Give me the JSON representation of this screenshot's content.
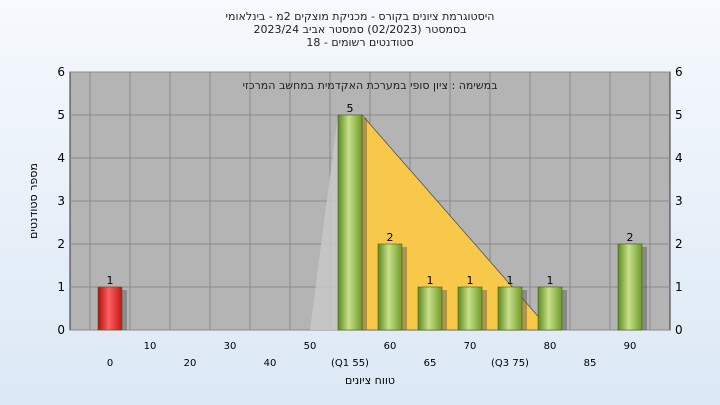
{
  "header": {
    "line1": "היסטוגרמת ציונים בקורס - מכניקת מוצקים 2מ - בינלאומי",
    "line2": "בסמסטר  (02/2023)  סמסטר אביב 2023/24",
    "line3": "סטודנטים רשומים - 18"
  },
  "colors": {
    "plot_background": "#b4b4b4",
    "bar_red": "#e02020",
    "bar_green": "#8fb53a",
    "distribution_fill": "#f7c84a",
    "grid": "#8a8a8a"
  },
  "chart_data": {
    "type": "bar",
    "title": "היסטוגרמת ציונים בקורס - מכניקת מוצקים 2מ - בינלאומי",
    "annotation": "במשימה : ציון סופי במערכת האקדמית במחשב המרכזי",
    "xlabel": "טווח ציונים",
    "ylabel": "מספר סטודנטים",
    "ylim": [
      0,
      6
    ],
    "yticks": [
      0,
      1,
      2,
      3,
      4,
      5,
      6
    ],
    "categories": [
      "0",
      "10",
      "20",
      "30",
      "40",
      "50",
      "55",
      "60",
      "65",
      "70",
      "75",
      "80",
      "85",
      "90"
    ],
    "x_tick_labels": [
      "0",
      "10",
      "20",
      "30",
      "40",
      "50",
      "(Q1 55)",
      "60",
      "65",
      "70",
      "(Q3 75)",
      "80",
      "85",
      "90"
    ],
    "values": [
      1,
      0,
      0,
      0,
      0,
      0,
      5,
      2,
      1,
      1,
      1,
      1,
      0,
      2
    ],
    "data_labels": [
      "1",
      "",
      "",
      "",
      "",
      "",
      "5",
      "2",
      "1",
      "1",
      "1",
      "1",
      "",
      "2"
    ],
    "bar_colors": [
      "red",
      "green",
      "green",
      "green",
      "green",
      "green",
      "green",
      "green",
      "green",
      "green",
      "green",
      "green",
      "green",
      "green"
    ],
    "grid": true,
    "secondary_y_axis": true
  }
}
